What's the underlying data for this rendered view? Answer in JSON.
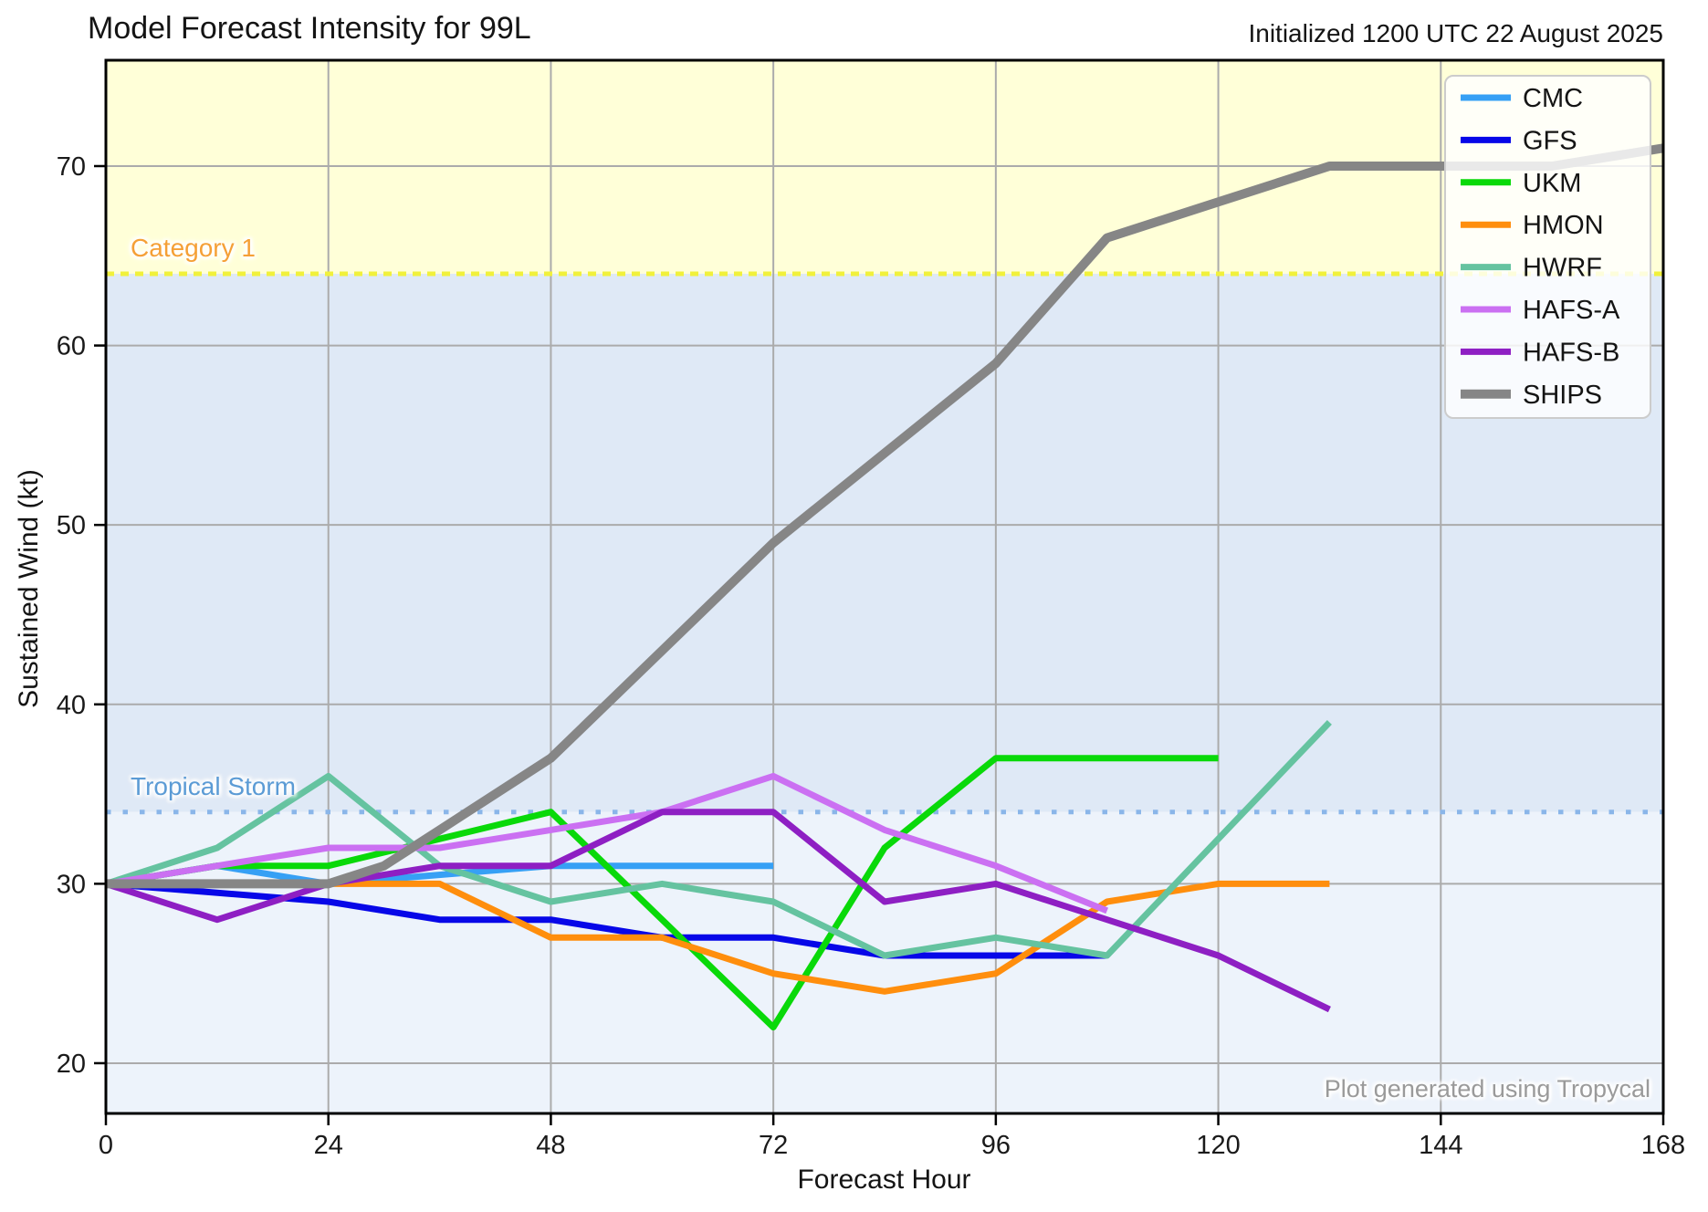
{
  "title": "Model Forecast Intensity for 99L",
  "initialized_text": "Initialized 1200 UTC 22 August 2025",
  "caption": "Plot generated using Tropycal",
  "chart_data": {
    "type": "line",
    "title": "Model Forecast Intensity for 99L",
    "xlabel": "Forecast Hour",
    "ylabel": "Sustained Wind (kt)",
    "xlim": [
      0,
      168
    ],
    "ylim": [
      17.2,
      75.9
    ],
    "x_ticks": [
      0,
      24,
      48,
      72,
      96,
      120,
      144,
      168
    ],
    "y_ticks": [
      20,
      30,
      40,
      50,
      60,
      70
    ],
    "grid": true,
    "grid_color": "#ababab",
    "legend_position": "upper right",
    "bands": [
      {
        "name": "category-1-zone",
        "from": 64,
        "to": 75.9,
        "color": "#ffffd8"
      },
      {
        "name": "tropical-storm-zone",
        "from": 34,
        "to": 64,
        "color": "#dfe9f6"
      },
      {
        "name": "below-tropical-storm-zone",
        "from": 17.2,
        "to": 34,
        "color": "#edf3fb"
      }
    ],
    "thresholds": [
      {
        "label": "Category 1",
        "value": 64,
        "label_color": "#f5a036",
        "line_color": "#f1f13b",
        "dash": [
          9,
          7
        ]
      },
      {
        "label": "Tropical Storm",
        "value": 34,
        "label_color": "#5b9bd5",
        "line_color": "#8ab6e9",
        "dash": [
          5.5,
          13
        ]
      }
    ],
    "series": [
      {
        "name": "CMC",
        "color": "#36a0f5",
        "width": 7,
        "points": [
          [
            0,
            30
          ],
          [
            12,
            31
          ],
          [
            24,
            30
          ],
          [
            48,
            31
          ],
          [
            60,
            31
          ],
          [
            72,
            31
          ]
        ]
      },
      {
        "name": "GFS",
        "color": "#0707e8",
        "width": 7,
        "points": [
          [
            0,
            30
          ],
          [
            24,
            29
          ],
          [
            36,
            28
          ],
          [
            48,
            28
          ],
          [
            60,
            27
          ],
          [
            72,
            27
          ],
          [
            84,
            26
          ],
          [
            96,
            26
          ],
          [
            108,
            26
          ]
        ]
      },
      {
        "name": "UKM",
        "color": "#09d909",
        "width": 7,
        "points": [
          [
            0,
            30
          ],
          [
            12,
            31
          ],
          [
            24,
            31
          ],
          [
            36,
            32.5
          ],
          [
            48,
            34
          ],
          [
            72,
            22
          ],
          [
            84,
            32
          ],
          [
            96,
            37
          ],
          [
            108,
            37
          ],
          [
            120,
            37
          ]
        ]
      },
      {
        "name": "HMON",
        "color": "#ff8e0d",
        "width": 7,
        "points": [
          [
            0,
            30
          ],
          [
            12,
            30
          ],
          [
            24,
            30
          ],
          [
            36,
            30
          ],
          [
            48,
            27
          ],
          [
            60,
            27
          ],
          [
            72,
            25
          ],
          [
            84,
            24
          ],
          [
            96,
            25
          ],
          [
            108,
            29
          ],
          [
            120,
            30
          ],
          [
            132,
            30
          ]
        ]
      },
      {
        "name": "HWRF",
        "color": "#65c3a0",
        "width": 7,
        "points": [
          [
            0,
            30
          ],
          [
            12,
            32
          ],
          [
            24,
            36
          ],
          [
            36,
            31
          ],
          [
            48,
            29
          ],
          [
            60,
            30
          ],
          [
            72,
            29
          ],
          [
            84,
            26
          ],
          [
            96,
            27
          ],
          [
            108,
            26
          ],
          [
            132,
            39
          ]
        ]
      },
      {
        "name": "HAFS-A",
        "color": "#cb70f2",
        "width": 7,
        "points": [
          [
            0,
            30
          ],
          [
            12,
            31
          ],
          [
            24,
            32
          ],
          [
            36,
            32
          ],
          [
            48,
            33
          ],
          [
            60,
            34
          ],
          [
            72,
            36
          ],
          [
            84,
            33
          ],
          [
            96,
            31
          ],
          [
            108,
            28.5
          ]
        ]
      },
      {
        "name": "HAFS-B",
        "color": "#8e1fc3",
        "width": 7,
        "points": [
          [
            0,
            30
          ],
          [
            12,
            28
          ],
          [
            24,
            30
          ],
          [
            36,
            31
          ],
          [
            48,
            31
          ],
          [
            60,
            34
          ],
          [
            72,
            34
          ],
          [
            84,
            29
          ],
          [
            96,
            30
          ],
          [
            108,
            28
          ],
          [
            120,
            26
          ],
          [
            132,
            23
          ]
        ]
      },
      {
        "name": "SHIPS",
        "color": "#868686",
        "width": 10,
        "points": [
          [
            0,
            30
          ],
          [
            12,
            30
          ],
          [
            24,
            30
          ],
          [
            30,
            31
          ],
          [
            36,
            33
          ],
          [
            48,
            37
          ],
          [
            60,
            43
          ],
          [
            72,
            49
          ],
          [
            84,
            54
          ],
          [
            96,
            59
          ],
          [
            108,
            66
          ],
          [
            120,
            68
          ],
          [
            132,
            70
          ],
          [
            144,
            70
          ],
          [
            156,
            70
          ],
          [
            168,
            71
          ]
        ]
      }
    ]
  }
}
